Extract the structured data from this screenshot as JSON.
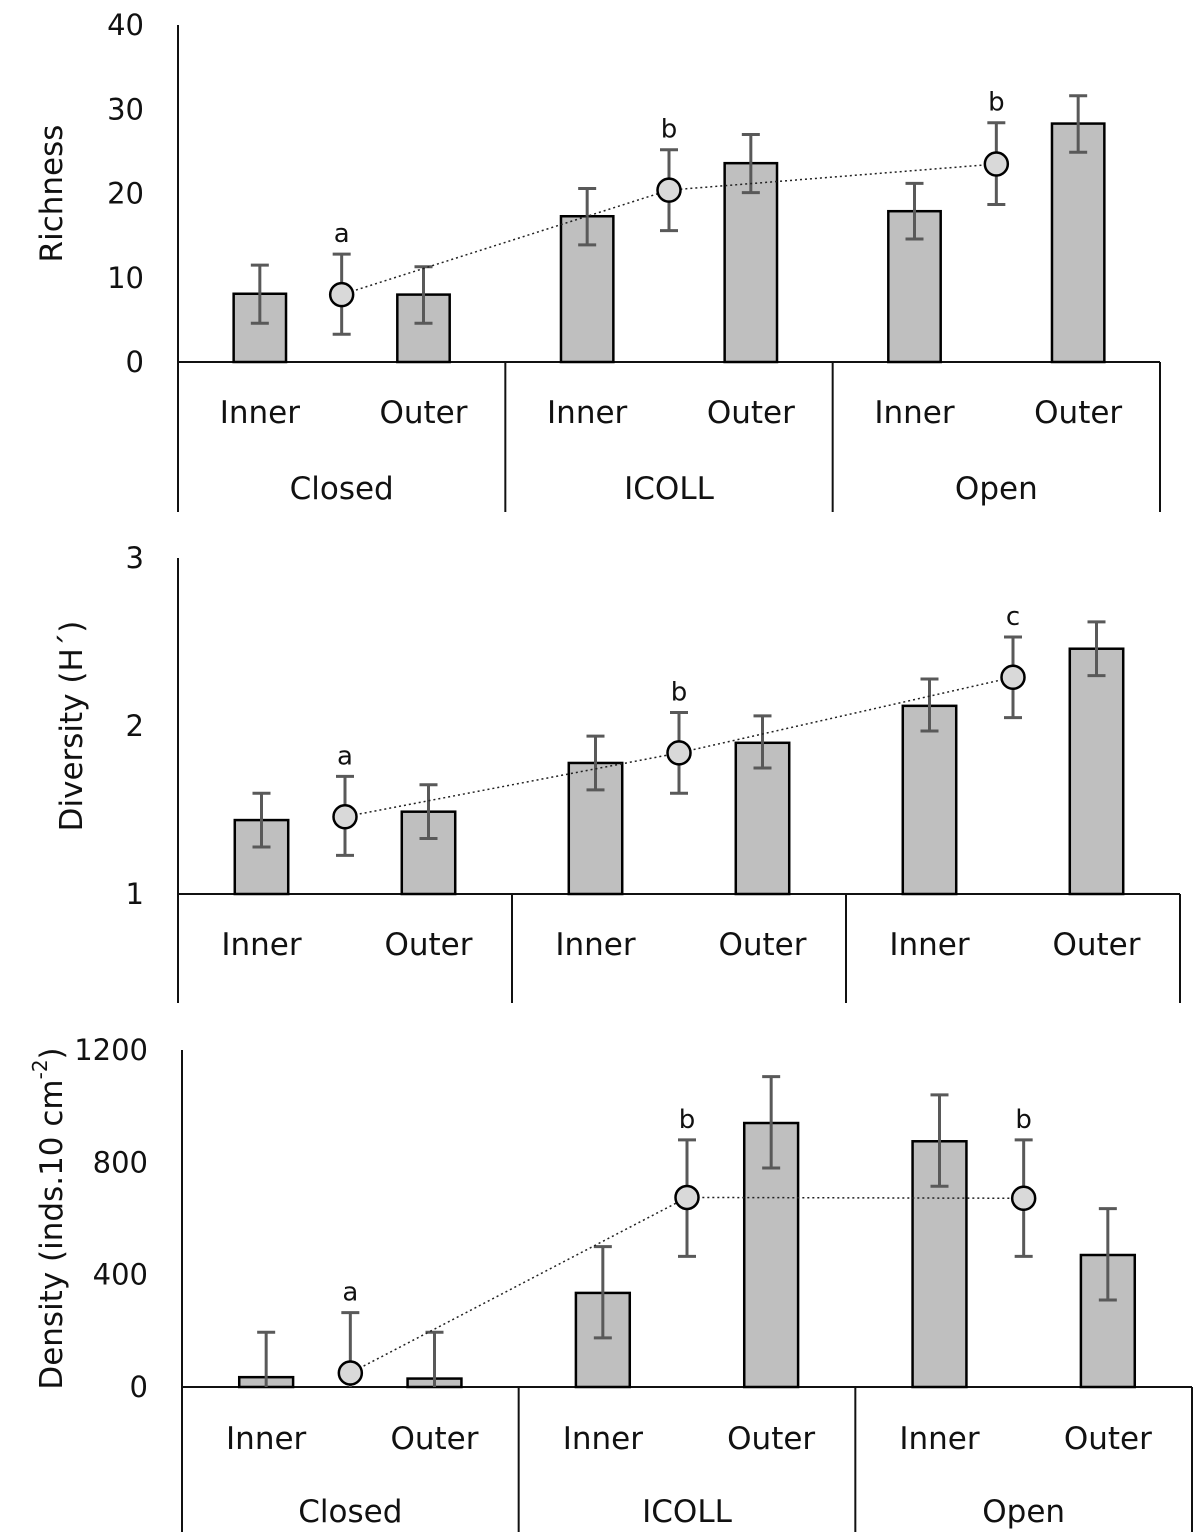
{
  "chart_data": [
    {
      "type": "bar",
      "ylabel": "Richness",
      "ylim": [
        0,
        40
      ],
      "yticks": [
        "0",
        "10",
        "20",
        "30",
        "40"
      ],
      "subgroups": [
        "Inner",
        "Outer"
      ],
      "groups": [
        "Closed",
        "ICOLL",
        "Open"
      ],
      "show_group_labels": true,
      "bars": [
        {
          "group": "Closed",
          "position": "Inner",
          "value": 8.1,
          "lo": 4.6,
          "hi": 11.5
        },
        {
          "group": "Closed",
          "position": "Outer",
          "value": 8.0,
          "lo": 4.6,
          "hi": 11.3
        },
        {
          "group": "ICOLL",
          "position": "Inner",
          "value": 17.3,
          "lo": 13.9,
          "hi": 20.6
        },
        {
          "group": "ICOLL",
          "position": "Outer",
          "value": 23.6,
          "lo": 20.1,
          "hi": 27.0
        },
        {
          "group": "Open",
          "position": "Inner",
          "value": 17.9,
          "lo": 14.6,
          "hi": 21.2
        },
        {
          "group": "Open",
          "position": "Outer",
          "value": 28.3,
          "lo": 24.9,
          "hi": 31.6
        }
      ],
      "means": [
        {
          "group": "Closed",
          "value": 8.0,
          "lo": 3.3,
          "hi": 12.8,
          "letter": "a"
        },
        {
          "group": "ICOLL",
          "value": 20.4,
          "lo": 15.6,
          "hi": 25.2,
          "letter": "b"
        },
        {
          "group": "Open",
          "value": 23.5,
          "lo": 18.7,
          "hi": 28.4,
          "letter": "b"
        }
      ]
    },
    {
      "type": "bar",
      "ylabel": "Diversity (H´)",
      "ylim": [
        1,
        3
      ],
      "yticks": [
        "1",
        "2",
        "3"
      ],
      "subgroups": [
        "Inner",
        "Outer"
      ],
      "groups": [
        "Closed",
        "ICOLL",
        "Open"
      ],
      "show_group_labels": false,
      "bars": [
        {
          "group": "Closed",
          "position": "Inner",
          "value": 1.44,
          "lo": 1.28,
          "hi": 1.6
        },
        {
          "group": "Closed",
          "position": "Outer",
          "value": 1.49,
          "lo": 1.33,
          "hi": 1.65
        },
        {
          "group": "ICOLL",
          "position": "Inner",
          "value": 1.78,
          "lo": 1.62,
          "hi": 1.94
        },
        {
          "group": "ICOLL",
          "position": "Outer",
          "value": 1.9,
          "lo": 1.75,
          "hi": 2.06
        },
        {
          "group": "Open",
          "position": "Inner",
          "value": 2.12,
          "lo": 1.97,
          "hi": 2.28
        },
        {
          "group": "Open",
          "position": "Outer",
          "value": 2.46,
          "lo": 2.3,
          "hi": 2.62
        }
      ],
      "means": [
        {
          "group": "Closed",
          "value": 1.46,
          "lo": 1.23,
          "hi": 1.7,
          "letter": "a"
        },
        {
          "group": "ICOLL",
          "value": 1.84,
          "lo": 1.6,
          "hi": 2.08,
          "letter": "b"
        },
        {
          "group": "Open",
          "value": 2.29,
          "lo": 2.05,
          "hi": 2.53,
          "letter": "c"
        }
      ]
    },
    {
      "type": "bar",
      "ylabel": "Density (inds.10 cm",
      "ylabel_sup": "-2",
      "ylabel_end": ")",
      "ylim": [
        0,
        1200
      ],
      "yticks": [
        "0",
        "400",
        "800",
        "1200"
      ],
      "subgroups": [
        "Inner",
        "Outer"
      ],
      "groups": [
        "Closed",
        "ICOLL",
        "Open"
      ],
      "show_group_labels": true,
      "bars": [
        {
          "group": "Closed",
          "position": "Inner",
          "value": 35,
          "lo": -125,
          "hi": 195
        },
        {
          "group": "Closed",
          "position": "Outer",
          "value": 30,
          "lo": -130,
          "hi": 195
        },
        {
          "group": "ICOLL",
          "position": "Inner",
          "value": 335,
          "lo": 175,
          "hi": 500
        },
        {
          "group": "ICOLL",
          "position": "Outer",
          "value": 940,
          "lo": 780,
          "hi": 1105
        },
        {
          "group": "Open",
          "position": "Inner",
          "value": 875,
          "lo": 715,
          "hi": 1040
        },
        {
          "group": "Open",
          "position": "Outer",
          "value": 470,
          "lo": 310,
          "hi": 635
        }
      ],
      "means": [
        {
          "group": "Closed",
          "value": 50,
          "lo": -165,
          "hi": 265,
          "letter": "a"
        },
        {
          "group": "ICOLL",
          "value": 675,
          "lo": 465,
          "hi": 880,
          "letter": "b"
        },
        {
          "group": "Open",
          "value": 672,
          "lo": 465,
          "hi": 880,
          "letter": "b"
        }
      ]
    }
  ]
}
